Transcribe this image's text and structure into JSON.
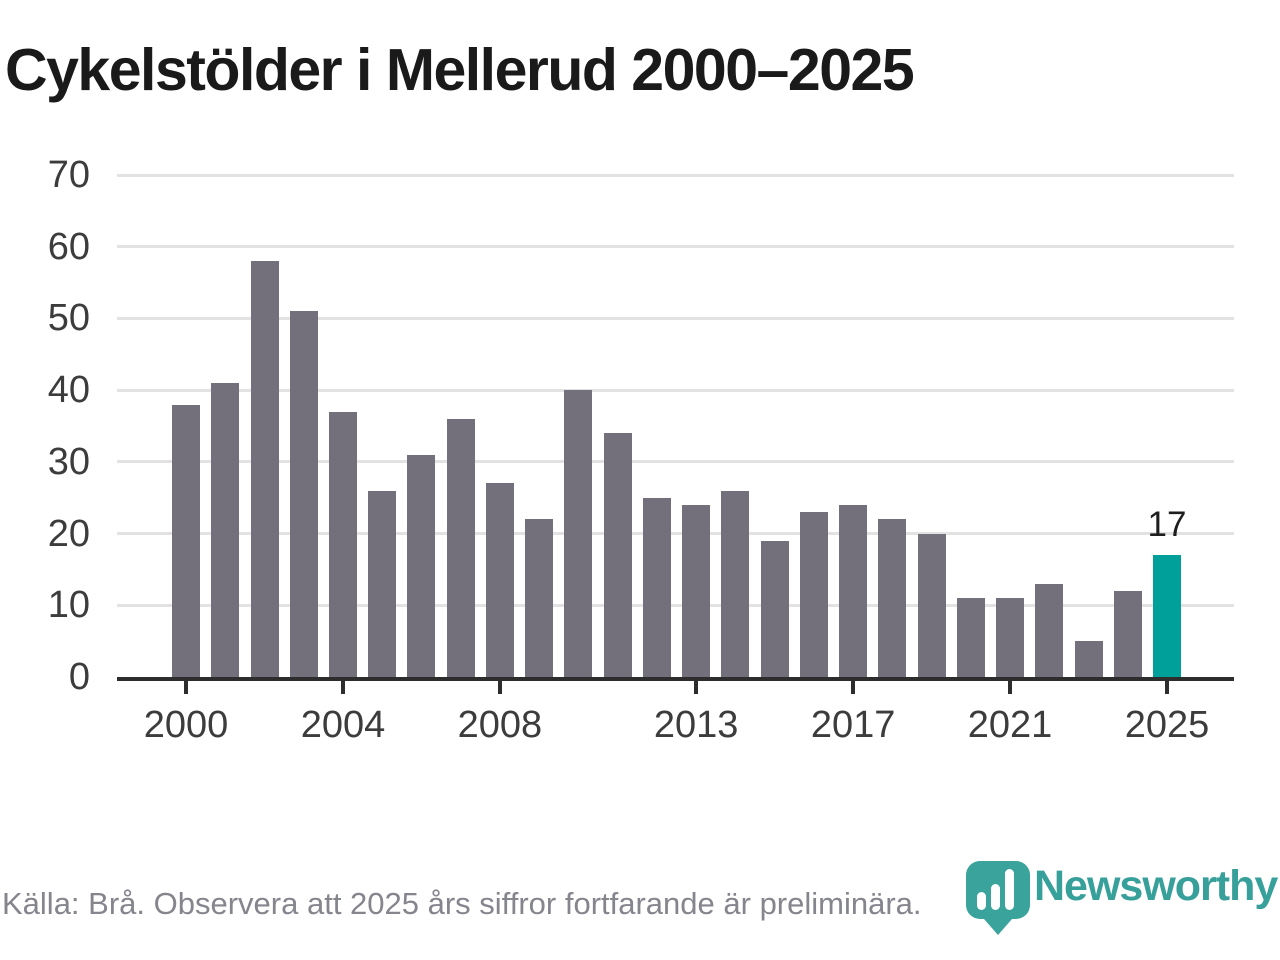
{
  "title": "Cykelstölder i Mellerud 2000–2025",
  "chart_data": {
    "type": "bar",
    "x": [
      2000,
      2001,
      2002,
      2003,
      2004,
      2005,
      2006,
      2007,
      2008,
      2009,
      2010,
      2011,
      2012,
      2013,
      2014,
      2015,
      2016,
      2017,
      2018,
      2019,
      2020,
      2021,
      2022,
      2023,
      2024,
      2025
    ],
    "values": [
      38,
      41,
      58,
      51,
      37,
      26,
      31,
      36,
      27,
      22,
      40,
      34,
      25,
      24,
      26,
      19,
      23,
      24,
      22,
      20,
      11,
      11,
      13,
      5,
      12,
      17
    ],
    "title": "Cykelstölder i Mellerud 2000–2025",
    "xlabel": "",
    "ylabel": "",
    "ylim": [
      0,
      70
    ],
    "yticks": [
      0,
      10,
      20,
      30,
      40,
      50,
      60,
      70
    ],
    "xticks": [
      2000,
      2004,
      2008,
      2013,
      2017,
      2021,
      2025
    ],
    "grid": "horizontal",
    "legend": "none",
    "highlight": {
      "x": 2025,
      "label": "17"
    },
    "colors": {
      "bar": "#74707b",
      "highlight": "#00a09a",
      "gridline": "#e2e2e2",
      "axis": "#2d2d2d",
      "tick_label": "#3c3c3c",
      "annotation": "#1e1e1e"
    }
  },
  "footer": {
    "source_text": "Källa: Brå. Observera att 2025 års siffror fortfarande är preliminära.",
    "logo_text": "Newsworthy",
    "logo_color": "#38a09a"
  }
}
